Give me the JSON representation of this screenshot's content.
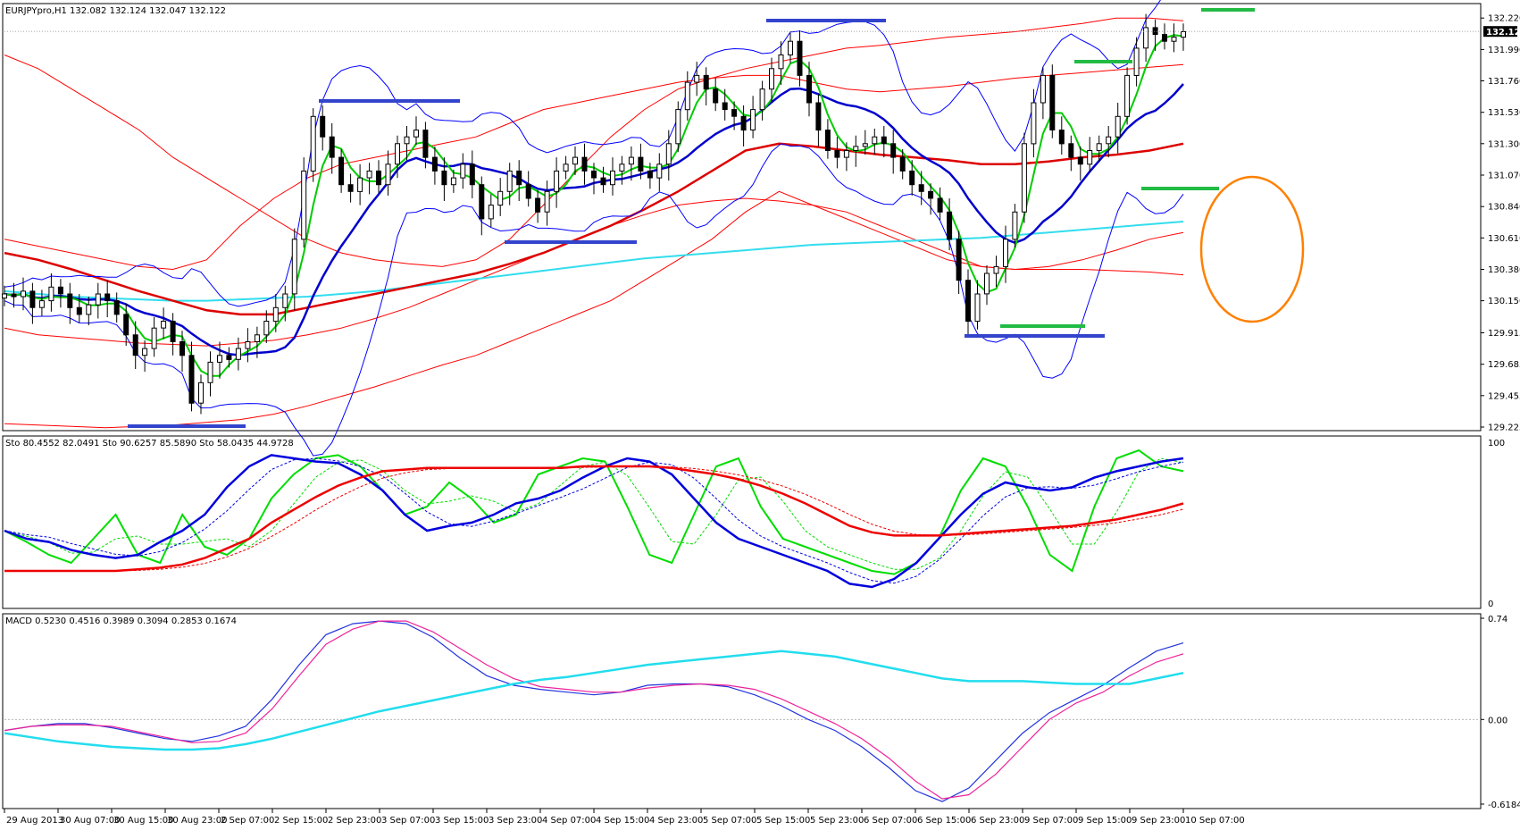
{
  "window": {
    "price_header": "EURJPYpro,H1  132.082 132.124 132.047 132.122",
    "stoch_header": "Sto 80.4552 82.0491   Sto 90.6257 85.5890   Sto 58.0435 44.9728",
    "macd_header": "MACD 0.5230 0.4516 0.3989 0.3094 0.2853 0.1674"
  },
  "chart_data": [
    {
      "type": "line",
      "panel": "price",
      "title": "EURJPYpro,H1",
      "ylim": [
        129.225,
        132.3
      ],
      "y_ticks": [
        "132.220",
        "131.990",
        "131.760",
        "131.530",
        "131.300",
        "131.070",
        "130.840",
        "130.610",
        "130.380",
        "130.150",
        "129.915",
        "129.685",
        "129.455",
        "129.225"
      ],
      "current_price": "132.122",
      "x_ticks": [
        "29 Aug 2013",
        "30 Aug 07:00",
        "30 Aug 15:00",
        "30 Aug 23:00",
        "2 Sep 07:00",
        "2 Sep 15:00",
        "2 Sep 23:00",
        "3 Sep 07:00",
        "3 Sep 15:00",
        "3 Sep 23:00",
        "4 Sep 07:00",
        "4 Sep 15:00",
        "4 Sep 23:00",
        "5 Sep 07:00",
        "5 Sep 15:00",
        "5 Sep 23:00",
        "6 Sep 07:00",
        "6 Sep 15:00",
        "6 Sep 23:00",
        "9 Sep 07:00",
        "9 Sep 15:00",
        "9 Sep 23:00",
        "10 Sep 07:00"
      ],
      "close": [
        130.2,
        130.18,
        130.22,
        130.1,
        130.15,
        130.25,
        130.2,
        130.1,
        130.05,
        130.12,
        130.2,
        130.15,
        130.05,
        129.9,
        129.75,
        129.8,
        129.95,
        130.0,
        129.85,
        129.75,
        129.4,
        129.55,
        129.7,
        129.75,
        129.72,
        129.8,
        129.85,
        129.9,
        130.0,
        130.1,
        130.2,
        130.6,
        131.1,
        131.5,
        131.35,
        131.2,
        131.0,
        130.95,
        131.05,
        131.1,
        131.0,
        131.15,
        131.3,
        131.35,
        131.4,
        131.2,
        131.1,
        131.0,
        131.05,
        131.15,
        131.0,
        130.75,
        130.85,
        130.95,
        131.1,
        131.0,
        130.9,
        130.8,
        130.95,
        131.1,
        131.15,
        131.2,
        131.1,
        131.05,
        131.0,
        131.1,
        131.15,
        131.2,
        131.1,
        131.05,
        131.15,
        131.3,
        131.55,
        131.75,
        131.8,
        131.7,
        131.6,
        131.55,
        131.5,
        131.4,
        131.55,
        131.7,
        131.85,
        131.95,
        132.05,
        131.8,
        131.6,
        131.4,
        131.25,
        131.2,
        131.25,
        131.28,
        131.3,
        131.35,
        131.3,
        131.2,
        131.1,
        131.0,
        130.95,
        130.9,
        130.8,
        130.6,
        130.3,
        130.0,
        130.2,
        130.35,
        130.4,
        130.6,
        130.8,
        131.3,
        131.6,
        131.8,
        131.4,
        131.3,
        131.2,
        131.15,
        131.25,
        131.3,
        131.35,
        131.5,
        131.8,
        132.0,
        132.15,
        132.1,
        132.05,
        132.08,
        132.12
      ],
      "bollinger_outer_upper": [
        131.95,
        131.85,
        131.7,
        131.55,
        131.4,
        131.2,
        131.05,
        130.9,
        130.75,
        130.6,
        130.5,
        130.45,
        130.42,
        130.4,
        130.45,
        130.6,
        130.85,
        131.1,
        131.35,
        131.55,
        131.7,
        131.78,
        131.85,
        131.9,
        131.95,
        132.0,
        132.02,
        132.05,
        132.08,
        132.1,
        132.12,
        132.15,
        132.18,
        132.22,
        132.22,
        132.2
      ],
      "bollinger_outer_lower": [
        129.25,
        129.24,
        129.23,
        129.22,
        129.23,
        129.24,
        129.26,
        129.28,
        129.32,
        129.38,
        129.45,
        129.52,
        129.6,
        129.68,
        129.75,
        129.85,
        129.95,
        130.05,
        130.15,
        130.3,
        130.45,
        130.6,
        130.8,
        130.95,
        130.85,
        130.75,
        130.65,
        130.55,
        130.45,
        130.4,
        130.38,
        130.38,
        130.38,
        130.37,
        130.36,
        130.34
      ],
      "bollinger_mid_upper": [
        130.6,
        130.55,
        130.5,
        130.45,
        130.4,
        130.38,
        130.45,
        130.7,
        130.9,
        131.05,
        131.15,
        131.2,
        131.25,
        131.3,
        131.35,
        131.45,
        131.55,
        131.6,
        131.65,
        131.7,
        131.75,
        131.78,
        131.8,
        131.8,
        131.75,
        131.7,
        131.68,
        131.7,
        131.72,
        131.75,
        131.78,
        131.8,
        131.82,
        131.84,
        131.86,
        131.88
      ],
      "bollinger_mid_lower": [
        129.95,
        129.9,
        129.88,
        129.86,
        129.84,
        129.83,
        129.82,
        129.84,
        129.86,
        129.9,
        129.95,
        130.02,
        130.1,
        130.2,
        130.3,
        130.4,
        130.5,
        130.6,
        130.7,
        130.78,
        130.85,
        130.88,
        130.9,
        130.88,
        130.85,
        130.8,
        130.7,
        130.6,
        130.5,
        130.4,
        130.38,
        130.4,
        130.45,
        130.52,
        130.6,
        130.65
      ],
      "sma_50": [
        130.5,
        130.45,
        130.38,
        130.3,
        130.22,
        130.15,
        130.08,
        130.05,
        130.05,
        130.1,
        130.15,
        130.2,
        130.25,
        130.3,
        130.35,
        130.42,
        130.5,
        130.6,
        130.7,
        130.82,
        130.95,
        131.1,
        131.25,
        131.3,
        131.28,
        131.25,
        131.22,
        131.2,
        131.18,
        131.15,
        131.15,
        131.17,
        131.2,
        131.22,
        131.25,
        131.3
      ],
      "sma_200": [
        130.22,
        130.2,
        130.18,
        130.17,
        130.16,
        130.15,
        130.15,
        130.16,
        130.17,
        130.18,
        130.2,
        130.22,
        130.25,
        130.28,
        130.31,
        130.34,
        130.37,
        130.4,
        130.43,
        130.46,
        130.48,
        130.5,
        130.52,
        130.54,
        130.56,
        130.57,
        130.58,
        130.59,
        130.6,
        130.61,
        130.63,
        130.65,
        130.67,
        130.69,
        130.71,
        130.73
      ]
    },
    {
      "type": "line",
      "panel": "stochastic",
      "title": "Sto",
      "ylim": [
        0,
        100
      ],
      "y_ticks": [
        "100",
        "0"
      ],
      "series": [
        {
          "name": "Sto 80.4552 82.0491",
          "values": [
            45,
            38,
            30,
            25,
            40,
            55,
            30,
            25,
            55,
            35,
            30,
            40,
            65,
            80,
            90,
            92,
            85,
            70,
            55,
            60,
            75,
            65,
            50,
            55,
            80,
            85,
            90,
            88,
            60,
            30,
            25,
            55,
            85,
            90,
            60,
            40,
            35,
            30,
            25,
            20,
            18,
            25,
            40,
            70,
            90,
            85,
            60,
            30,
            20,
            60,
            90,
            95,
            85,
            82
          ]
        },
        {
          "name": "Sto 90.6257 85.5890",
          "values": [
            45,
            40,
            38,
            33,
            30,
            28,
            30,
            38,
            45,
            55,
            72,
            85,
            92,
            90,
            88,
            87,
            80,
            70,
            55,
            45,
            48,
            50,
            55,
            62,
            65,
            70,
            78,
            85,
            90,
            88,
            80,
            65,
            50,
            40,
            35,
            30,
            25,
            20,
            12,
            10,
            15,
            25,
            40,
            55,
            68,
            75,
            72,
            70,
            72,
            78,
            82,
            85,
            88,
            90
          ]
        },
        {
          "name": "Sto 58.0435 44.9728",
          "values": [
            20,
            20,
            20,
            20,
            20,
            20,
            21,
            22,
            24,
            28,
            34,
            40,
            50,
            58,
            66,
            73,
            78,
            82,
            83,
            84,
            84,
            84,
            84,
            84,
            84,
            84,
            85,
            85,
            85,
            85,
            84,
            82,
            80,
            77,
            73,
            68,
            62,
            55,
            48,
            44,
            42,
            42,
            42,
            43,
            44,
            45,
            46,
            47,
            48,
            50,
            52,
            55,
            58,
            62
          ]
        }
      ]
    },
    {
      "type": "line",
      "panel": "macd",
      "title": "MACD",
      "ylim": [
        -0.6184,
        0.74
      ],
      "y_ticks": [
        "0.74",
        "0.00",
        "-0.6184"
      ],
      "series": [
        {
          "name": "MACD 0.5230",
          "values": [
            -0.08,
            -0.05,
            -0.03,
            -0.03,
            -0.06,
            -0.1,
            -0.14,
            -0.16,
            -0.12,
            -0.05,
            0.15,
            0.4,
            0.62,
            0.7,
            0.72,
            0.7,
            0.6,
            0.45,
            0.32,
            0.25,
            0.22,
            0.2,
            0.18,
            0.2,
            0.25,
            0.26,
            0.26,
            0.24,
            0.18,
            0.1,
            0.0,
            -0.08,
            -0.2,
            -0.35,
            -0.52,
            -0.6,
            -0.5,
            -0.3,
            -0.1,
            0.05,
            0.15,
            0.25,
            0.38,
            0.5,
            0.56
          ]
        },
        {
          "name": "0.4516 0.3989",
          "values": [
            -0.08,
            -0.05,
            -0.04,
            -0.04,
            -0.05,
            -0.09,
            -0.13,
            -0.17,
            -0.16,
            -0.1,
            0.08,
            0.32,
            0.55,
            0.66,
            0.72,
            0.72,
            0.64,
            0.52,
            0.4,
            0.3,
            0.24,
            0.22,
            0.2,
            0.2,
            0.23,
            0.25,
            0.26,
            0.25,
            0.22,
            0.15,
            0.06,
            -0.03,
            -0.14,
            -0.28,
            -0.45,
            -0.58,
            -0.55,
            -0.4,
            -0.2,
            0.0,
            0.12,
            0.2,
            0.32,
            0.42,
            0.48
          ]
        },
        {
          "name": "0.3094 0.2853 0.1674",
          "values": [
            -0.1,
            -0.13,
            -0.16,
            -0.18,
            -0.2,
            -0.21,
            -0.22,
            -0.22,
            -0.21,
            -0.18,
            -0.14,
            -0.09,
            -0.04,
            0.01,
            0.06,
            0.1,
            0.14,
            0.18,
            0.22,
            0.26,
            0.29,
            0.31,
            0.34,
            0.37,
            0.4,
            0.42,
            0.44,
            0.46,
            0.48,
            0.5,
            0.48,
            0.46,
            0.42,
            0.38,
            0.34,
            0.3,
            0.28,
            0.28,
            0.28,
            0.27,
            0.26,
            0.26,
            0.26,
            0.3,
            0.34
          ]
        }
      ]
    }
  ],
  "colors": {
    "price_up": "#ffffff",
    "price_down": "#000000",
    "bollinger_red": "#ff0000",
    "bollinger_blue": "#0000ff",
    "sma_fast": "#00cc00",
    "sma_mid": "#0000cc",
    "sma_slow": "#dd0000",
    "sma_200": "#33ddee",
    "annotation_orange": "#ff8000",
    "annotation_blue": "#3344cc",
    "annotation_green": "#22bb44",
    "stoch_green": "#00dd00",
    "stoch_blue": "#0000dd",
    "stoch_red": "#ee0000",
    "macd_blue": "#2233dd",
    "macd_magenta": "#ee2299",
    "macd_cyan": "#22ddee"
  }
}
